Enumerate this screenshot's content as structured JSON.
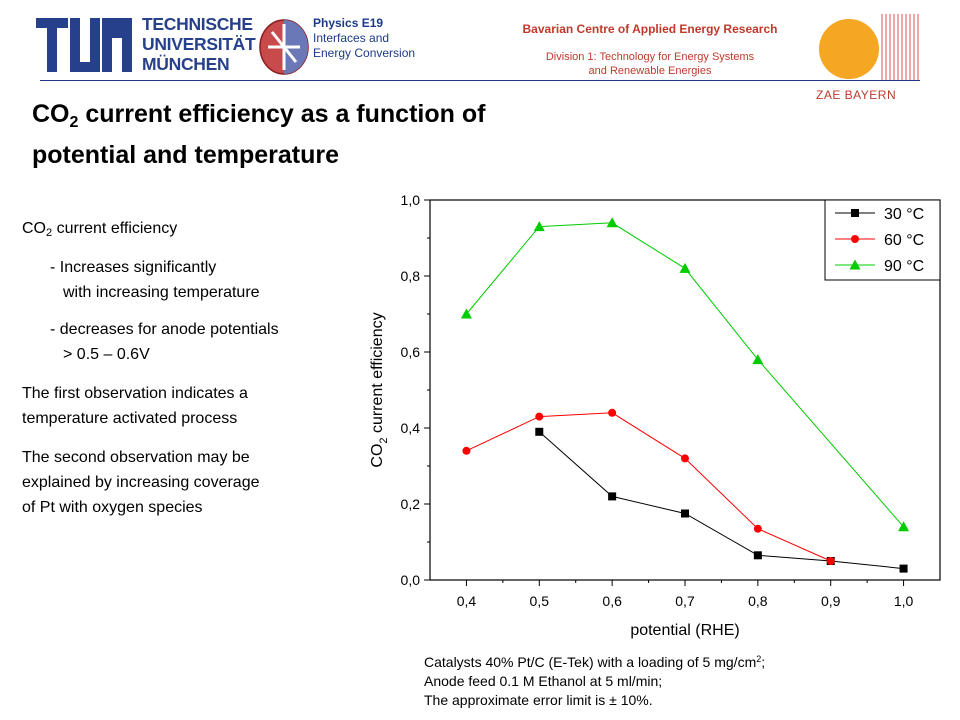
{
  "header": {
    "tum_lines": [
      "TECHNISCHE",
      "UNIVERSITÄT",
      "MÜNCHEN"
    ],
    "physics": {
      "title": "Physics E19",
      "line1": "Interfaces and",
      "line2": "Energy Conversion"
    },
    "bavarian": "Bavarian Centre of Applied Energy Research",
    "division_line1": "Division 1: Technology for Energy Systems",
    "division_line2": "and Renewable Energies",
    "zae": "ZAE BAYERN",
    "colors": {
      "tum_blue": "#27408b",
      "zae_red": "#c0392b",
      "sun_orange": "#f5a623"
    }
  },
  "title": {
    "line1_pre": "CO",
    "line1_sub": "2",
    "line1_post": " current efficiency as a function of",
    "line2": "potential and temperature"
  },
  "body": {
    "heading_pre": "CO",
    "heading_sub": "2",
    "heading_post": " current efficiency",
    "b1_line1": "- Increases significantly",
    "b1_line2": "with increasing temperature",
    "b2_line1": "- decreases for anode potentials",
    "b2_line2": "> 0.5 – 0.6V",
    "obs1_line1": "The first observation indicates a",
    "obs1_line2": "temperature activated process",
    "obs2_line1": "The second observation may be",
    "obs2_line2": "explained by increasing coverage",
    "obs2_line3": "of Pt with oxygen species"
  },
  "chart_data": {
    "type": "line",
    "xlabel": "potential (RHE)",
    "ylabel_pre": "CO",
    "ylabel_sub": "2",
    "ylabel_post": " current efficiency",
    "xlim": [
      0.35,
      1.05
    ],
    "ylim": [
      0.0,
      1.0
    ],
    "xticks": [
      0.4,
      0.5,
      0.6,
      0.7,
      0.8,
      0.9,
      1.0
    ],
    "xtick_labels": [
      "0,4",
      "0,5",
      "0,6",
      "0,7",
      "0,8",
      "0,9",
      "1,0"
    ],
    "yticks": [
      0.0,
      0.2,
      0.4,
      0.6,
      0.8,
      1.0
    ],
    "ytick_labels": [
      "0,0",
      "0,2",
      "0,4",
      "0,6",
      "0,8",
      "1,0"
    ],
    "grid": false,
    "legend_position": "top-right",
    "series": [
      {
        "name": "30 °C",
        "color": "#000000",
        "marker": "square",
        "x": [
          0.5,
          0.6,
          0.7,
          0.8,
          0.9,
          1.0
        ],
        "y": [
          0.39,
          0.22,
          0.175,
          0.065,
          0.05,
          0.03
        ]
      },
      {
        "name": "60 °C",
        "color": "#ff0000",
        "marker": "circle",
        "x": [
          0.4,
          0.5,
          0.6,
          0.7,
          0.8,
          0.9
        ],
        "y": [
          0.34,
          0.43,
          0.44,
          0.32,
          0.135,
          0.05
        ]
      },
      {
        "name": "90 °C",
        "color": "#00cc00",
        "marker": "triangle",
        "x": [
          0.4,
          0.5,
          0.6,
          0.7,
          0.8,
          1.0
        ],
        "y": [
          0.7,
          0.93,
          0.94,
          0.82,
          0.58,
          0.14
        ]
      }
    ]
  },
  "caption": {
    "line1_pre": "Catalysts 40% Pt/C (E-Tek) with a loading of 5 mg/cm",
    "line1_sup": "2",
    "line1_post": ";",
    "line2": "Anode feed 0.1 M Ethanol at 5 ml/min;",
    "line3": "The approximate error limit is ± 10%."
  }
}
